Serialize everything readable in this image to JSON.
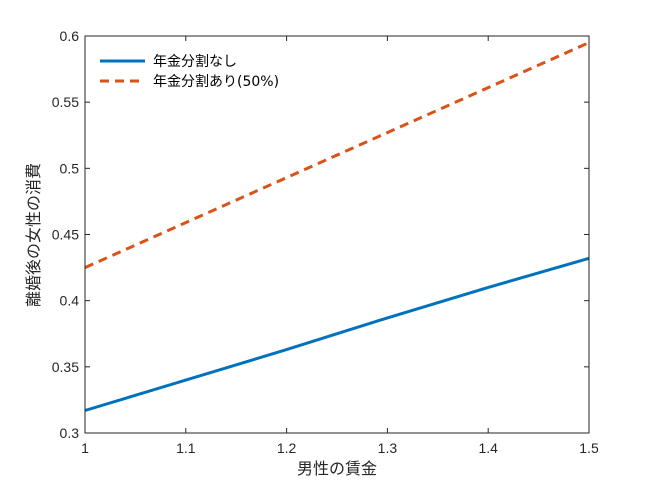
{
  "chart_data": {
    "type": "line",
    "title": "",
    "xlabel": "男性の賃金",
    "ylabel": "離婚後の女性の消費",
    "xlim": [
      1,
      1.5
    ],
    "ylim": [
      0.3,
      0.6
    ],
    "x_ticks": [
      "1",
      "1.1",
      "1.2",
      "1.3",
      "1.4",
      "1.5"
    ],
    "y_ticks": [
      "0.3",
      "0.35",
      "0.4",
      "0.45",
      "0.5",
      "0.55",
      "0.6"
    ],
    "grid": false,
    "legend_position": "top-left",
    "series": [
      {
        "name": "年金分割なし",
        "style": "solid",
        "color": "#0072bd",
        "x": [
          1,
          1.1,
          1.2,
          1.3,
          1.4,
          1.5
        ],
        "y": [
          0.317,
          0.34,
          0.363,
          0.387,
          0.41,
          0.432
        ]
      },
      {
        "name": "年金分割あり(50%)",
        "style": "dashed",
        "color": "#d95319",
        "x": [
          1,
          1.1,
          1.2,
          1.3,
          1.4,
          1.5
        ],
        "y": [
          0.425,
          0.459,
          0.493,
          0.527,
          0.561,
          0.595
        ]
      }
    ]
  }
}
